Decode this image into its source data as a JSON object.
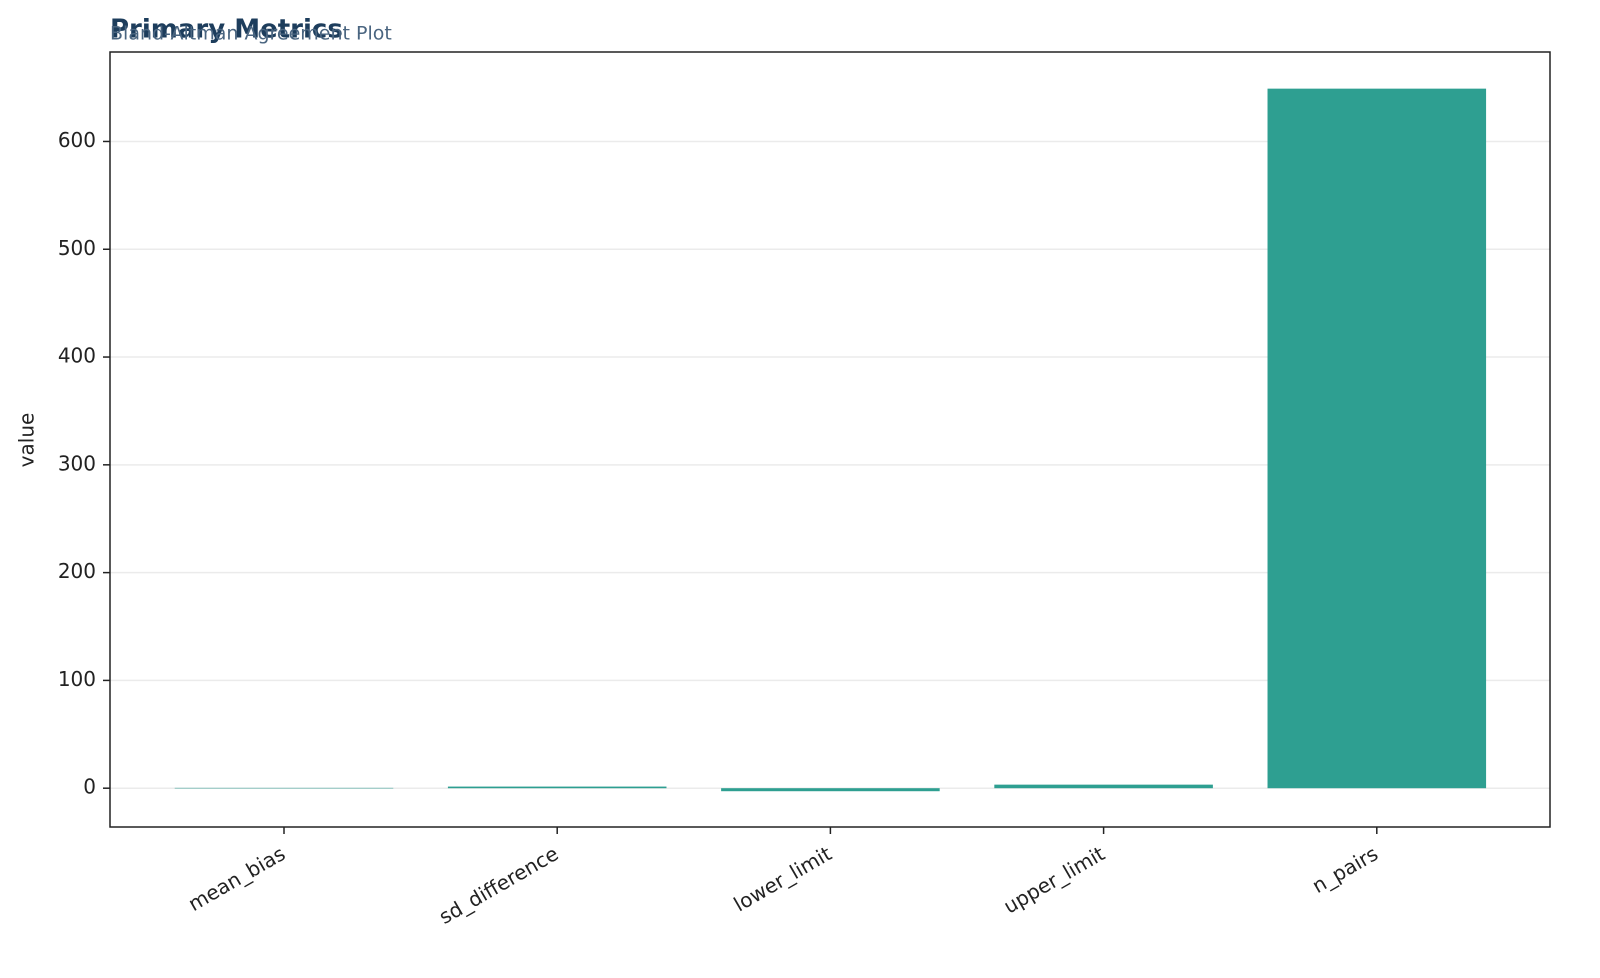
{
  "chart_data": {
    "type": "bar",
    "title": "Primary Metrics",
    "subtitle": "Bland-Altman Agreement Plot",
    "y_label": "value",
    "categories": [
      "mean_bias",
      "sd_difference",
      "lower_limit",
      "upper_limit",
      "n_pairs"
    ],
    "values": [
      0.3,
      1.5,
      -2.8,
      3.3,
      649
    ],
    "color": "#2a9d8f",
    "ylim": [
      -36,
      683
    ],
    "yticks": [
      0,
      100,
      200,
      300,
      400,
      500,
      600
    ],
    "grid": true
  }
}
